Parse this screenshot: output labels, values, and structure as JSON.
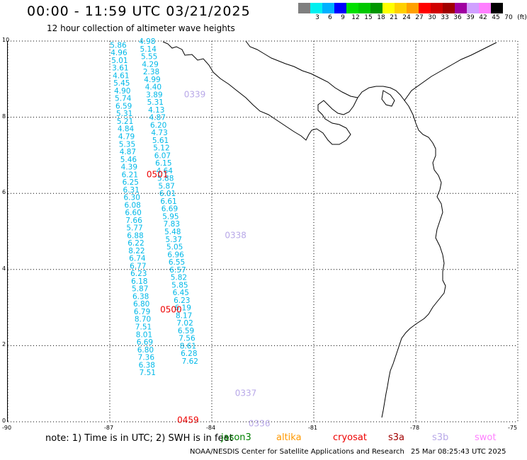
{
  "header": {
    "title": "00:00 - 11:59 UTC 03/21/2025",
    "subtitle": "12 hour collection of altimeter wave heights"
  },
  "legend": {
    "unit": "(ft)",
    "items": [
      {
        "label": "",
        "color": "#7f7f7f"
      },
      {
        "label": "3",
        "color": "#00f0f0"
      },
      {
        "label": "6",
        "color": "#00b0ff"
      },
      {
        "label": "9",
        "color": "#0000ff"
      },
      {
        "label": "12",
        "color": "#00e000"
      },
      {
        "label": "15",
        "color": "#00c800"
      },
      {
        "label": "18",
        "color": "#009600"
      },
      {
        "label": "21",
        "color": "#ffff00"
      },
      {
        "label": "24",
        "color": "#ffd000"
      },
      {
        "label": "27",
        "color": "#ffa000"
      },
      {
        "label": "30",
        "color": "#ff0000"
      },
      {
        "label": "33",
        "color": "#d00000"
      },
      {
        "label": "36",
        "color": "#a00000"
      },
      {
        "label": "39",
        "color": "#a000a0"
      },
      {
        "label": "42",
        "color": "#d0a0ff"
      },
      {
        "label": "45",
        "color": "#ff80ff"
      },
      {
        "label": "70",
        "color": "#000000"
      }
    ]
  },
  "axes": {
    "x_ticks": [
      "-90",
      "-87",
      "-84",
      "-81",
      "-78",
      "-75"
    ],
    "y_ticks": [
      "0",
      "2",
      "4",
      "6",
      "8",
      "10"
    ],
    "lon_range": [
      -90,
      -75
    ],
    "lat_range": [
      0,
      10
    ]
  },
  "map": {
    "land": "Central America / northwestern South America coastline (Panama, Colombia)",
    "track_color": "#00b8e8",
    "pass_time_color_jason": "#ee0000",
    "pass_time_color_s3b": "#b8a8e8"
  },
  "tracks": {
    "left_track": {
      "values": [
        "5.86",
        "4.96",
        "5.01",
        "3.61",
        "4.61",
        "5.45",
        "4.90",
        "5.74",
        "6.59",
        "5.31",
        "5.21",
        "4.84",
        "4.79",
        "5.35",
        "4.87",
        "5.46",
        "4.39",
        "6.21",
        "6.25",
        "6.31",
        "6.30",
        "6.08",
        "6.60",
        "7.66",
        "5.77",
        "6.88",
        "6.22",
        "8.22",
        "6.74",
        "6.77",
        "6.23",
        "6.18",
        "5.87",
        "6.38",
        "6.80",
        "6.79",
        "8.70",
        "7.51",
        "8.01",
        "6.69",
        "6.80",
        "7.36",
        "6.38",
        "7.51"
      ],
      "lat": [
        9.9,
        9.7,
        9.5,
        9.3,
        9.1,
        8.9,
        8.7,
        8.5,
        8.3,
        8.1,
        7.9,
        7.7,
        7.5,
        7.3,
        7.1,
        6.9,
        6.7,
        6.5,
        6.3,
        6.1,
        5.9,
        5.7,
        5.5,
        5.3,
        5.1,
        4.9,
        4.7,
        4.5,
        4.3,
        4.1,
        3.9,
        3.7,
        3.5,
        3.3,
        3.1,
        2.9,
        2.7,
        2.5,
        2.3,
        2.1,
        1.9,
        1.7,
        1.5,
        1.3
      ],
      "lon": [
        -86.75,
        -86.73,
        -86.71,
        -86.69,
        -86.67,
        -86.65,
        -86.63,
        -86.61,
        -86.59,
        -86.57,
        -86.55,
        -86.53,
        -86.51,
        -86.49,
        -86.47,
        -86.45,
        -86.43,
        -86.41,
        -86.39,
        -86.37,
        -86.35,
        -86.33,
        -86.31,
        -86.29,
        -86.27,
        -86.25,
        -86.23,
        -86.21,
        -86.19,
        -86.17,
        -86.15,
        -86.13,
        -86.11,
        -86.09,
        -86.07,
        -86.05,
        -86.03,
        -86.01,
        -85.99,
        -85.97,
        -85.95,
        -85.93,
        -85.91,
        -85.89
      ]
    },
    "right_track": {
      "values": [
        "4.98",
        "5.14",
        "5.55",
        "4.29",
        "2.38",
        "4.99",
        "4.40",
        "3.89",
        "5.31",
        "4.13",
        "4.87",
        "6.20",
        "4.73",
        "5.61",
        "5.12",
        "6.07",
        "6.15",
        "4.64",
        "5.88",
        "5.87",
        "6.01",
        "6.61",
        "6.69",
        "5.95",
        "7.83",
        "5.48",
        "5.37",
        "5.05",
        "6.96",
        "6.55",
        "6.57",
        "5.82",
        "5.85",
        "6.45",
        "6.23",
        "6.19",
        "8.17",
        "7.02",
        "6.59",
        "7.56",
        "8.61",
        "6.28",
        "7.62"
      ],
      "lat": [
        10.0,
        9.8,
        9.6,
        9.4,
        9.2,
        9.0,
        8.8,
        8.6,
        8.4,
        8.2,
        8.0,
        7.8,
        7.6,
        7.4,
        7.2,
        7.0,
        6.8,
        6.6,
        6.4,
        6.2,
        6.0,
        5.8,
        5.6,
        5.4,
        5.2,
        5.0,
        4.8,
        4.6,
        4.4,
        4.2,
        4.0,
        3.8,
        3.6,
        3.4,
        3.2,
        3.0,
        2.8,
        2.6,
        2.4,
        2.2,
        2.0,
        1.8,
        1.6
      ],
      "lon": [
        -85.9,
        -85.87,
        -85.84,
        -85.81,
        -85.78,
        -85.75,
        -85.72,
        -85.69,
        -85.66,
        -85.63,
        -85.6,
        -85.57,
        -85.54,
        -85.51,
        -85.48,
        -85.45,
        -85.42,
        -85.39,
        -85.36,
        -85.33,
        -85.3,
        -85.27,
        -85.24,
        -85.21,
        -85.18,
        -85.15,
        -85.12,
        -85.09,
        -85.06,
        -85.03,
        -85.0,
        -84.97,
        -84.94,
        -84.91,
        -84.88,
        -84.85,
        -84.82,
        -84.79,
        -84.76,
        -84.73,
        -84.7,
        -84.67,
        -84.64
      ]
    },
    "pass_labels": [
      {
        "text": "0339",
        "lon": -84.5,
        "lat": 8.6,
        "kind": "s3b"
      },
      {
        "text": "0501",
        "lon": -85.6,
        "lat": 6.5,
        "kind": "jason"
      },
      {
        "text": "0338",
        "lon": -83.3,
        "lat": 4.9,
        "kind": "s3b"
      },
      {
        "text": "0500",
        "lon": -85.2,
        "lat": 2.95,
        "kind": "jason"
      },
      {
        "text": "0337",
        "lon": -83.0,
        "lat": 0.75,
        "kind": "s3b"
      },
      {
        "text": "0459",
        "lon": -84.7,
        "lat": 0.05,
        "kind": "jason"
      },
      {
        "text": "0336",
        "lon": -82.6,
        "lat": -0.05,
        "kind": "s3b"
      }
    ]
  },
  "footer": {
    "note": "note: 1) Time is in UTC; 2) SWH is in feet",
    "missions": [
      {
        "label": "jason3",
        "color": "#008000"
      },
      {
        "label": "altika",
        "color": "#ff9900"
      },
      {
        "label": "cryosat",
        "color": "#ee0000"
      },
      {
        "label": "s3a",
        "color": "#a00000"
      },
      {
        "label": "s3b",
        "color": "#b8a8e8"
      },
      {
        "label": "swot",
        "color": "#ff80ff"
      }
    ],
    "credit": "NOAA/NESDIS Center for Satellite Applications and Research",
    "stamp": "25 Mar 08:25:43 UTC 2025"
  }
}
